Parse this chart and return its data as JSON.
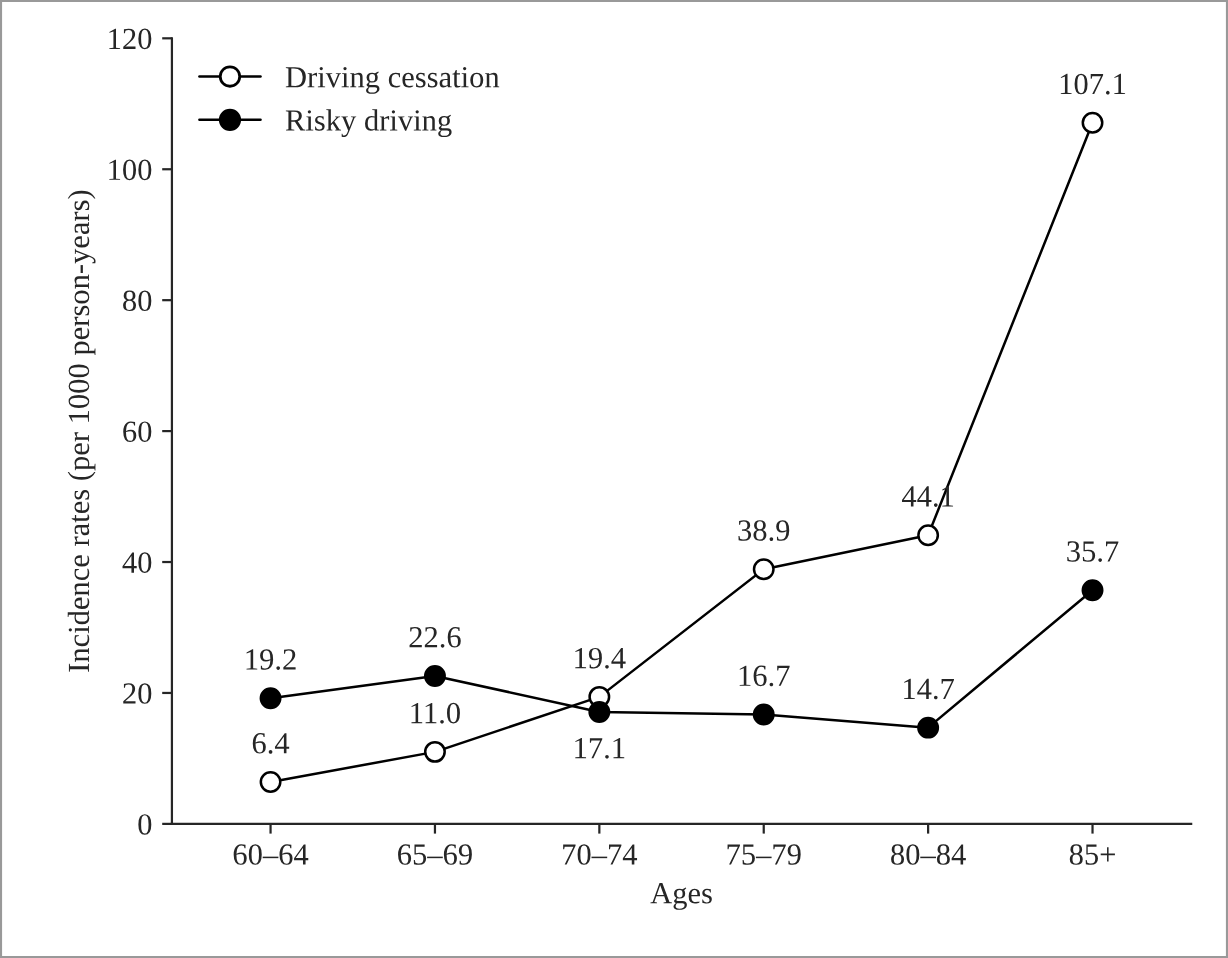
{
  "chart_data": {
    "type": "line",
    "xlabel": "Ages",
    "ylabel": "Incidence rates (per 1000 person-years)",
    "categories": [
      "60–64",
      "65–69",
      "70–74",
      "75–79",
      "80–84",
      "85+"
    ],
    "series": [
      {
        "name": "Driving cessation",
        "color": "#000000",
        "values": [
          6.4,
          11.0,
          19.4,
          38.9,
          44.1,
          107.1
        ],
        "value_labels": [
          "6.4",
          "11.0",
          "19.4",
          "38.9",
          "44.1",
          "107.1"
        ]
      },
      {
        "name": "Risky driving",
        "color": "#000000",
        "values": [
          19.2,
          22.6,
          17.1,
          16.7,
          14.7,
          35.7
        ],
        "value_labels": [
          "19.2",
          "22.6",
          "17.1",
          "16.7",
          "14.7",
          "35.7"
        ]
      }
    ],
    "ylim": [
      0,
      120
    ],
    "yticks": [
      0,
      20,
      40,
      60,
      80,
      100,
      120
    ],
    "grid": false,
    "legend": "top left",
    "marker": "circle",
    "line_style": "solid"
  }
}
